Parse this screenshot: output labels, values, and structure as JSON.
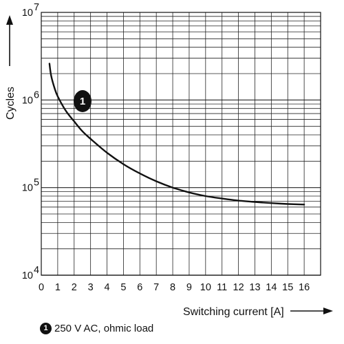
{
  "chart_data": {
    "type": "line",
    "xlabel": "Switching current [A]",
    "ylabel": "Cycles",
    "x_ticks": [
      "0",
      "1",
      "2",
      "3",
      "4",
      "5",
      "6",
      "7",
      "8",
      "9",
      "10",
      "11",
      "12",
      "13",
      "14",
      "15",
      "16"
    ],
    "y_ticks": [
      {
        "base": "10",
        "exp": "4",
        "value": 10000
      },
      {
        "base": "10",
        "exp": "5",
        "value": 100000
      },
      {
        "base": "10",
        "exp": "6",
        "value": 1000000
      },
      {
        "base": "10",
        "exp": "7",
        "value": 10000000
      }
    ],
    "xlim": [
      0,
      17
    ],
    "ylim": [
      10000,
      10000000
    ],
    "y_scale": "log",
    "grid": true,
    "legend_position": "bottom-left",
    "series": [
      {
        "marker": "1",
        "label": "250 V AC, ohmic load",
        "color": "#111111",
        "x": [
          0.5,
          0.6,
          0.8,
          1.0,
          1.5,
          2.0,
          2.5,
          3.0,
          4.0,
          5.0,
          6.0,
          7.0,
          8.0,
          9.0,
          10.0,
          11.0,
          12.0,
          13.0,
          14.0,
          15.0,
          16.0
        ],
        "y": [
          2600000,
          1900000,
          1380000,
          1100000,
          750000,
          570000,
          440000,
          360000,
          250000,
          185000,
          145000,
          118000,
          100000,
          88000,
          80000,
          75000,
          71000,
          68500,
          66500,
          65000,
          64000
        ]
      }
    ]
  }
}
